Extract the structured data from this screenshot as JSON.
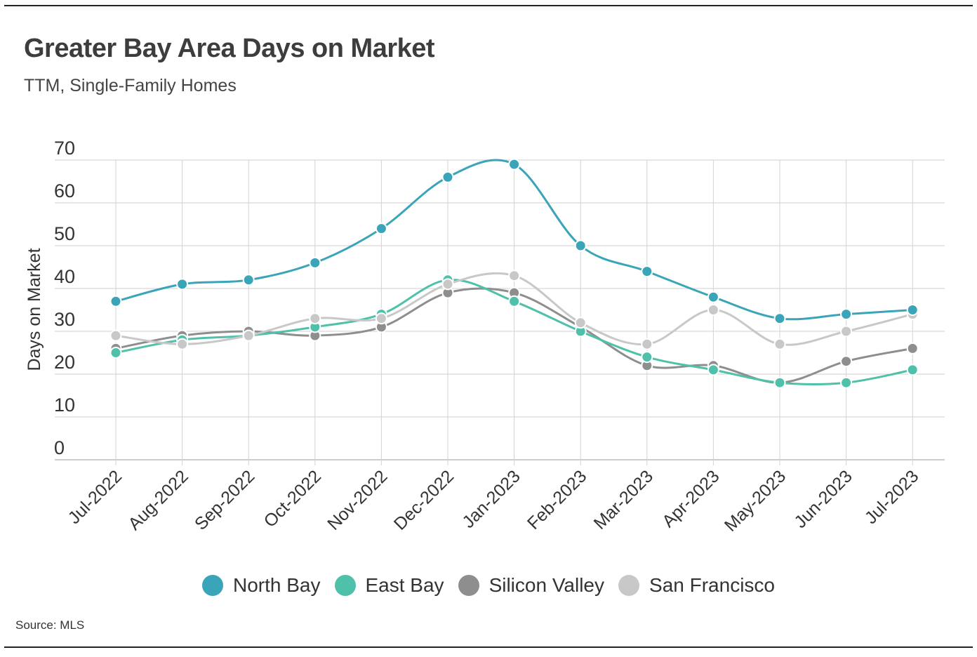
{
  "header": {
    "title": "Greater Bay Area Days on Market",
    "subtitle": "TTM, Single-Family Homes"
  },
  "footer": {
    "source": "Source: MLS"
  },
  "chart_data": {
    "type": "line",
    "title": "Greater Bay Area Days on Market",
    "subtitle": "TTM, Single-Family Homes",
    "xlabel": "",
    "ylabel": "Days on Market",
    "ylim": [
      0,
      70
    ],
    "yticks": [
      0,
      10,
      20,
      30,
      40,
      50,
      60,
      70
    ],
    "grid": true,
    "legend_position": "bottom",
    "categories": [
      "Jul-2022",
      "Aug-2022",
      "Sep-2022",
      "Oct-2022",
      "Nov-2022",
      "Dec-2022",
      "Jan-2023",
      "Feb-2023",
      "Mar-2023",
      "Apr-2023",
      "May-2023",
      "Jun-2023",
      "Jul-2023"
    ],
    "series": [
      {
        "name": "Silicon Valley",
        "color": "#8e8e8e",
        "values": [
          26,
          29,
          30,
          29,
          31,
          39,
          39,
          31,
          22,
          22,
          18,
          23,
          26
        ]
      },
      {
        "name": "East Bay",
        "color": "#4fc1ab",
        "values": [
          25,
          28,
          29,
          31,
          34,
          42,
          37,
          30,
          24,
          21,
          18,
          18,
          21
        ]
      },
      {
        "name": "San Francisco",
        "color": "#c8c8c8",
        "values": [
          29,
          27,
          29,
          33,
          33,
          41,
          43,
          32,
          27,
          35,
          27,
          30,
          34
        ]
      },
      {
        "name": "North Bay",
        "color": "#3aa5b8",
        "values": [
          37,
          41,
          42,
          46,
          54,
          66,
          69,
          50,
          44,
          38,
          33,
          34,
          35
        ]
      }
    ],
    "legend_order": [
      "North Bay",
      "East Bay",
      "Silicon Valley",
      "San Francisco"
    ]
  }
}
